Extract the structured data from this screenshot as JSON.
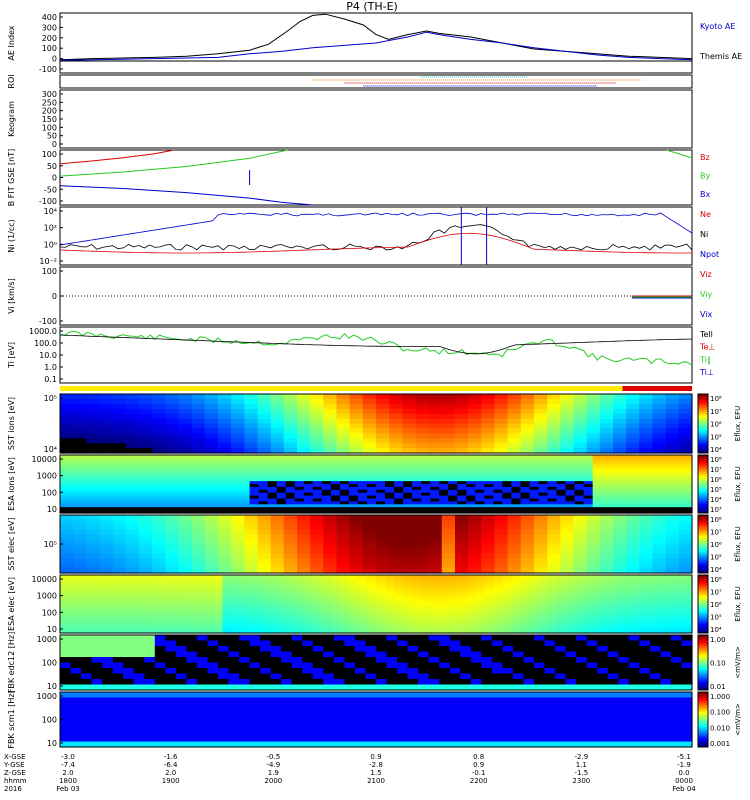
{
  "title": "P4 (TH-E)",
  "colors": {
    "black": "#000000",
    "red": "#dd0000",
    "green": "#22cc22",
    "blue": "#0000cc",
    "cyan": "#22cccc",
    "orange": "#ff8800"
  },
  "chart_data": [
    {
      "type": "line",
      "name": "ae",
      "ylabel": "AE Index",
      "ylim": [
        -100,
        400
      ],
      "yticks": [
        "400",
        "300",
        "200",
        "100",
        "0",
        "-100"
      ],
      "legend": [
        "Kyoto AE",
        "Themis AE"
      ],
      "series": [
        {
          "name": "Themis AE",
          "color": "black",
          "x": [
            0,
            0.05,
            0.1,
            0.15,
            0.2,
            0.25,
            0.3,
            0.33,
            0.36,
            0.38,
            0.4,
            0.42,
            0.45,
            0.48,
            0.5,
            0.52,
            0.55,
            0.58,
            0.6,
            0.65,
            0.7,
            0.75,
            0.8,
            0.85,
            0.9,
            0.95,
            1.0
          ],
          "y": [
            10,
            20,
            25,
            30,
            40,
            60,
            90,
            140,
            250,
            330,
            380,
            390,
            350,
            300,
            220,
            180,
            220,
            250,
            230,
            200,
            150,
            100,
            80,
            60,
            40,
            30,
            20
          ]
        },
        {
          "name": "Kyoto AE",
          "color": "blue",
          "x": [
            0,
            0.05,
            0.1,
            0.15,
            0.2,
            0.25,
            0.3,
            0.35,
            0.4,
            0.45,
            0.5,
            0.55,
            0.58,
            0.6,
            0.65,
            0.7,
            0.75,
            0.8,
            0.85,
            0.9,
            0.95,
            1.0
          ],
          "y": [
            5,
            10,
            15,
            20,
            25,
            30,
            60,
            80,
            110,
            130,
            150,
            200,
            240,
            220,
            180,
            150,
            110,
            80,
            50,
            30,
            20,
            10
          ]
        }
      ]
    },
    {
      "type": "line",
      "name": "roi",
      "ylabel": "ROI",
      "yticks": [],
      "series": []
    },
    {
      "type": "heatmap",
      "name": "keogram",
      "ylabel": "Keogram",
      "ylim": [
        0,
        300
      ],
      "yticks": [
        "300",
        "250",
        "200",
        "150",
        "100",
        "50",
        "0"
      ]
    },
    {
      "type": "line",
      "name": "bfield",
      "ylabel": "B FIT GSE [nT]",
      "ylim": [
        -100,
        100
      ],
      "yticks": [
        "100",
        "50",
        "0",
        "-50",
        "-100"
      ],
      "legend": [
        "Bz",
        "By",
        "Bx"
      ],
      "series": [
        {
          "name": "Bz",
          "color": "red",
          "x": [
            0,
            0.05,
            0.1,
            0.15,
            0.18
          ],
          "y": [
            50,
            60,
            72,
            86,
            100
          ]
        },
        {
          "name": "By",
          "color": "green",
          "x": [
            0,
            0.1,
            0.2,
            0.3,
            0.36
          ],
          "y": [
            5,
            20,
            40,
            70,
            100
          ]
        },
        {
          "name": "Bx",
          "color": "blue",
          "x": [
            0,
            0.1,
            0.2,
            0.3,
            0.35,
            0.4
          ],
          "y": [
            -30,
            -40,
            -55,
            -75,
            -90,
            -100
          ]
        }
      ]
    },
    {
      "type": "line",
      "name": "density",
      "ylabel": "Ni (1/cc)",
      "yticks": [
        "10⁴",
        "10²",
        "10⁰",
        "10⁻²"
      ],
      "legend": [
        "Ne",
        "Ni",
        "Npot"
      ],
      "series": []
    },
    {
      "type": "line",
      "name": "velocity",
      "ylabel": "Vi [km/s]",
      "ylim": [
        -100,
        100
      ],
      "yticks": [
        "100",
        "0",
        "-100"
      ],
      "legend": [
        "Viz",
        "Viy",
        "Vix"
      ],
      "series": []
    },
    {
      "type": "line",
      "name": "temperature",
      "ylabel": "Ti [eV]",
      "yticks": [
        "1000.0",
        "100.0",
        "10.0",
        "1.0",
        "0.1"
      ],
      "legend": [
        "Tell",
        "Te⊥",
        "Ti∥",
        "Ti⊥"
      ],
      "series": []
    },
    {
      "type": "heatmap",
      "name": "sst-ion",
      "ylabel": "SST ions [eV]",
      "yticks": [
        "10⁵",
        "10⁴"
      ],
      "cbar_label": "Eflux, EFU",
      "cbar_ticks": [
        "10⁸",
        "10⁷",
        "10⁶",
        "10⁵",
        "10⁴"
      ]
    },
    {
      "type": "heatmap",
      "name": "esa-ion",
      "ylabel": "ESA ions [eV]",
      "yticks": [
        "10000",
        "1000",
        "100",
        "10"
      ],
      "cbar_label": "Eflux, EFU",
      "cbar_ticks": [
        "10⁸",
        "10⁷",
        "10⁶",
        "10⁵",
        "10⁴",
        "10³"
      ]
    },
    {
      "type": "heatmap",
      "name": "sst-elec",
      "ylabel": "SST elec [eV]",
      "yticks": [
        "10⁵"
      ],
      "cbar_label": "Eflux, EFU",
      "cbar_ticks": [
        "10⁸",
        "10⁷",
        "10⁶",
        "10⁵",
        "10⁴"
      ]
    },
    {
      "type": "heatmap",
      "name": "esa-elec",
      "ylabel": "ESA elec [eV]",
      "yticks": [
        "10000",
        "1000",
        "100",
        "10"
      ],
      "cbar_label": "Eflux, EFU",
      "cbar_ticks": [
        "10⁸",
        "10⁷",
        "10⁶",
        "10⁵",
        "10⁴"
      ]
    },
    {
      "type": "heatmap",
      "name": "fbk-e12",
      "ylabel": "FBK edc12 [Hz]",
      "yticks": [
        "1000",
        "100",
        "10"
      ],
      "cbar_label": "<mV/m>",
      "cbar_ticks": [
        "1.00",
        "0.10",
        "0.01"
      ]
    },
    {
      "type": "heatmap",
      "name": "fbk-scm",
      "ylabel": "FBK scm1 [Hz]",
      "yticks": [
        "1000",
        "100",
        "10"
      ],
      "cbar_label": "<mV/m>",
      "cbar_ticks": [
        "1.000",
        "0.100",
        "0.010",
        "0.001"
      ]
    }
  ],
  "xaxis": {
    "row_labels": [
      "X-GSE",
      "Y-GSE",
      "Z-GSE",
      "hhmm",
      "2016"
    ],
    "ticks": [
      {
        "lines": [
          "-3.0",
          "-7.4",
          "2.0",
          "1800",
          "Feb 03"
        ]
      },
      {
        "lines": [
          "-1.6",
          "-6.4",
          "2.0",
          "1900",
          ""
        ]
      },
      {
        "lines": [
          "-0.5",
          "-4.9",
          "1.9",
          "2000",
          ""
        ]
      },
      {
        "lines": [
          "0.9",
          "-2.8",
          "1.5",
          "2100",
          ""
        ]
      },
      {
        "lines": [
          "0.8",
          "0.9",
          "-0.1",
          "2200",
          ""
        ]
      },
      {
        "lines": [
          "-2.9",
          "1.1",
          "-1.5",
          "2300",
          ""
        ]
      },
      {
        "lines": [
          "-5.1",
          "-1.9",
          "0.0",
          "0000",
          "Feb 04"
        ]
      }
    ]
  }
}
